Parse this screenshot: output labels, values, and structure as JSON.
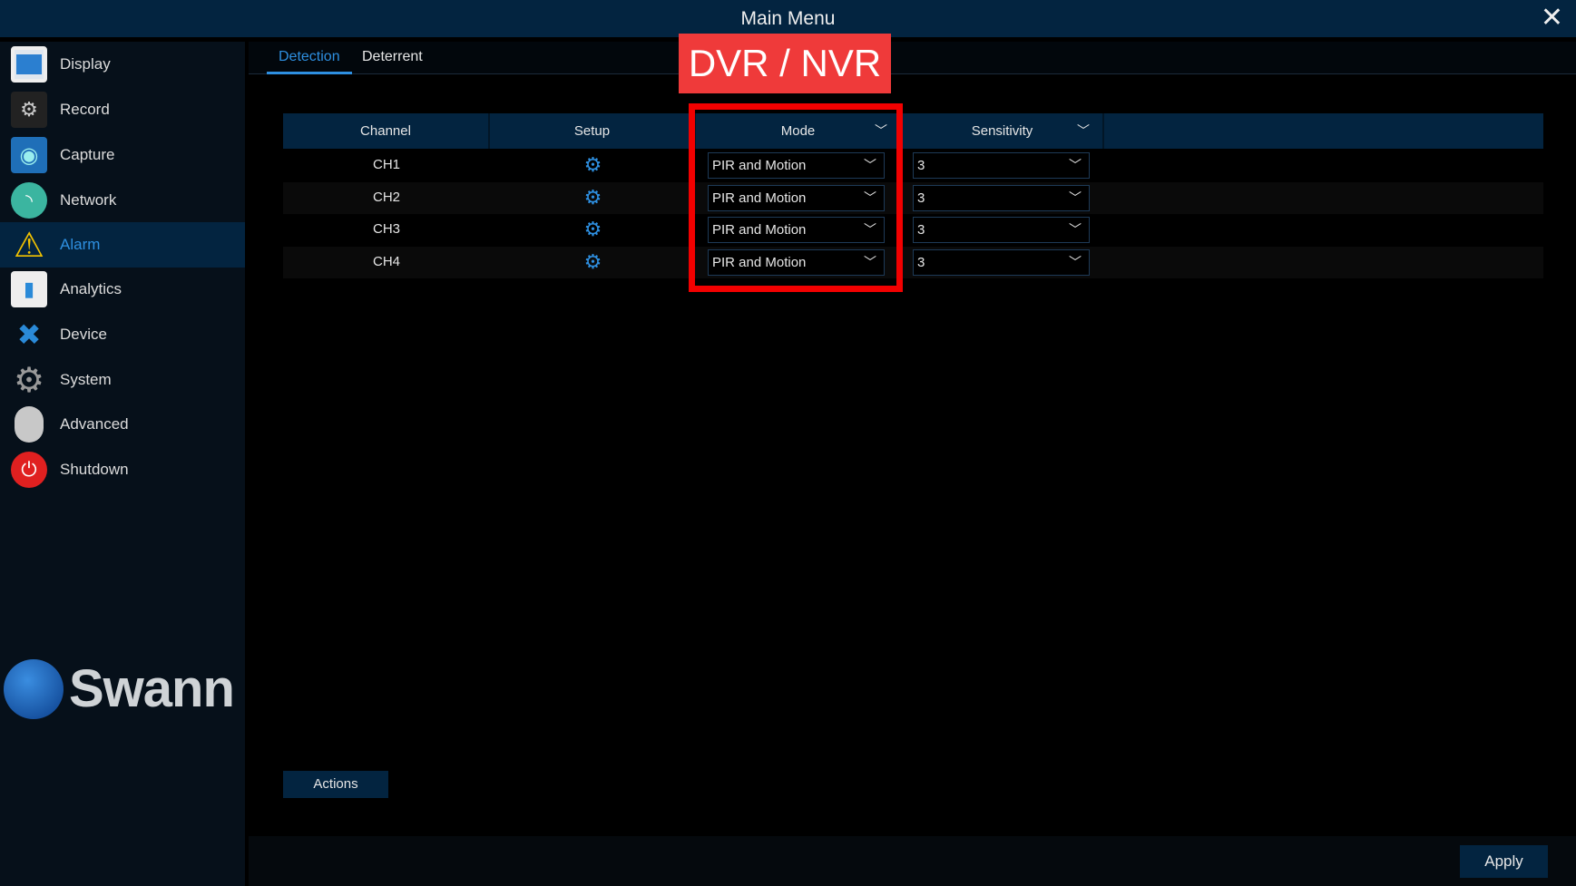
{
  "window": {
    "title": "Main Menu",
    "close_icon": "close-icon"
  },
  "sidebar": {
    "items": [
      {
        "label": "Display",
        "icon": "display-icon",
        "color": "#3b8fd8"
      },
      {
        "label": "Record",
        "icon": "record-icon",
        "color": "#888888"
      },
      {
        "label": "Capture",
        "icon": "camera-icon",
        "color": "#1f6fb8"
      },
      {
        "label": "Network",
        "icon": "network-icon",
        "color": "#3bb5a0"
      },
      {
        "label": "Alarm",
        "icon": "warning-icon",
        "color": "#f2c200",
        "active": true
      },
      {
        "label": "Analytics",
        "icon": "analytics-icon",
        "color": "#e0e0e0"
      },
      {
        "label": "Device",
        "icon": "device-icon",
        "color": "#2a8ad8"
      },
      {
        "label": "System",
        "icon": "gear-icon",
        "color": "#999999"
      },
      {
        "label": "Advanced",
        "icon": "mouse-icon",
        "color": "#c8c8c8"
      },
      {
        "label": "Shutdown",
        "icon": "power-icon",
        "color": "#e02020"
      }
    ],
    "logo": "Swann"
  },
  "tabs": [
    {
      "label": "Detection",
      "active": true
    },
    {
      "label": "Deterrent"
    }
  ],
  "table": {
    "headers": {
      "channel": "Channel",
      "setup": "Setup",
      "mode": "Mode",
      "sensitivity": "Sensitivity"
    },
    "rows": [
      {
        "channel": "CH1",
        "mode": "PIR and Motion",
        "sensitivity": "3"
      },
      {
        "channel": "CH2",
        "mode": "PIR and Motion",
        "sensitivity": "3"
      },
      {
        "channel": "CH3",
        "mode": "PIR and Motion",
        "sensitivity": "3"
      },
      {
        "channel": "CH4",
        "mode": "PIR and Motion",
        "sensitivity": "3"
      }
    ]
  },
  "overlay_label": "DVR / NVR",
  "buttons": {
    "actions": "Actions",
    "apply": "Apply"
  },
  "colors": {
    "accent": "#2e8fe0",
    "header": "#032440",
    "highlight": "#f20000"
  }
}
